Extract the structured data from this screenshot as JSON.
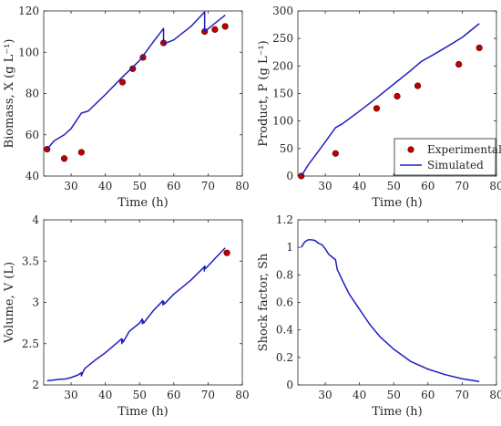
{
  "chart_data": [
    {
      "type": "line",
      "xlabel": "Time (h)",
      "ylabel": "Biomass, X (g L⁻¹)",
      "xlim": [
        22,
        80
      ],
      "ylim": [
        40,
        120
      ],
      "xticks": [
        30,
        40,
        50,
        60,
        70,
        80
      ],
      "yticks": [
        40,
        60,
        80,
        100,
        120
      ],
      "series": [
        {
          "name": "Experimental",
          "kind": "scatter",
          "color": "#c00000",
          "x": [
            23,
            28,
            33,
            45,
            48,
            51,
            57,
            69,
            72,
            75
          ],
          "y": [
            53,
            48.5,
            51.5,
            85.5,
            92,
            97.5,
            104.5,
            110,
            111,
            112.5
          ]
        },
        {
          "name": "Simulated",
          "kind": "line",
          "color": "#1f1fbf",
          "x": [
            23,
            25,
            28,
            30,
            33,
            35,
            40,
            45,
            50,
            54,
            57,
            57,
            60,
            65,
            69,
            69,
            72,
            75
          ],
          "y": [
            53,
            57,
            60,
            63,
            70.5,
            71.5,
            79.5,
            88,
            96,
            105,
            111.5,
            104,
            106,
            112.5,
            119.5,
            110,
            114,
            118
          ]
        }
      ]
    },
    {
      "type": "line",
      "xlabel": "Time (h)",
      "ylabel": "Product, P (g L⁻¹)",
      "xlim": [
        22,
        80
      ],
      "ylim": [
        0,
        300
      ],
      "xticks": [
        30,
        40,
        50,
        60,
        70,
        80
      ],
      "yticks": [
        0,
        50,
        100,
        150,
        200,
        250,
        300
      ],
      "legend": {
        "placement": "bottom-right",
        "entries": [
          "Experimental",
          "Simulated"
        ]
      },
      "series": [
        {
          "name": "Experimental",
          "kind": "scatter",
          "color": "#c00000",
          "x": [
            23,
            33,
            45,
            51,
            57,
            69,
            75
          ],
          "y": [
            0,
            41,
            123,
            145,
            164,
            203,
            233
          ]
        },
        {
          "name": "Simulated",
          "kind": "line",
          "color": "#1f1fbf",
          "x": [
            23,
            25,
            28,
            30,
            33,
            35,
            40,
            45,
            50,
            55,
            58,
            62,
            65,
            70,
            75
          ],
          "y": [
            0,
            20,
            45,
            62,
            88,
            95,
            118,
            142,
            167,
            192,
            208,
            222,
            233,
            252,
            277
          ]
        }
      ]
    },
    {
      "type": "line",
      "xlabel": "Time (h)",
      "ylabel": "Volume, V (L)",
      "xlim": [
        22,
        80
      ],
      "ylim": [
        2,
        4
      ],
      "xticks": [
        30,
        40,
        50,
        60,
        70,
        80
      ],
      "yticks": [
        2,
        2.5,
        3,
        3.5,
        4
      ],
      "yticklabels": [
        "2",
        "2.5",
        "3",
        "3.5",
        "4"
      ],
      "series": [
        {
          "name": "Experimental",
          "kind": "scatter",
          "color": "#c00000",
          "x": [
            75.5
          ],
          "y": [
            3.6
          ]
        },
        {
          "name": "Simulated",
          "kind": "line",
          "color": "#1f1fbf",
          "x": [
            23,
            27,
            28,
            30,
            32,
            33,
            33,
            33.5,
            34,
            37,
            40,
            44.8,
            44.8,
            45,
            45.2,
            47,
            50,
            50.8,
            50.8,
            51,
            51.2,
            54,
            56.8,
            56.8,
            57,
            57.2,
            60,
            65,
            68.9,
            68.9,
            69,
            69.3,
            72,
            75
          ],
          "y": [
            2.05,
            2.07,
            2.07,
            2.09,
            2.12,
            2.15,
            2.11,
            2.16,
            2.2,
            2.3,
            2.39,
            2.56,
            2.5,
            2.55,
            2.52,
            2.65,
            2.75,
            2.8,
            2.74,
            2.78,
            2.75,
            2.9,
            3.02,
            2.97,
            3.01,
            2.98,
            3.1,
            3.27,
            3.43,
            3.38,
            3.44,
            3.41,
            3.53,
            3.66
          ]
        }
      ]
    },
    {
      "type": "line",
      "xlabel": "Time (h)",
      "ylabel": "Shock factor, Sh",
      "xlim": [
        22,
        80
      ],
      "ylim": [
        0,
        1.2
      ],
      "xticks": [
        30,
        40,
        50,
        60,
        70,
        80
      ],
      "yticks": [
        0,
        0.2,
        0.4,
        0.6,
        0.8,
        1,
        1.2
      ],
      "yticklabels": [
        "0",
        "0.2",
        "0.4",
        "0.6",
        "0.8",
        "1",
        "1.2"
      ],
      "series": [
        {
          "name": "Simulated",
          "kind": "line",
          "color": "#1f1fbf",
          "x": [
            23,
            24,
            25,
            26,
            27,
            28,
            29,
            30,
            31,
            32,
            33,
            33.5,
            35,
            37,
            40,
            43,
            46,
            50,
            55,
            60,
            65,
            70,
            75
          ],
          "y": [
            1.0,
            1.04,
            1.055,
            1.055,
            1.05,
            1.03,
            1.02,
            0.99,
            0.95,
            0.93,
            0.91,
            0.84,
            0.76,
            0.66,
            0.55,
            0.44,
            0.35,
            0.26,
            0.17,
            0.115,
            0.075,
            0.045,
            0.025
          ]
        }
      ]
    }
  ]
}
